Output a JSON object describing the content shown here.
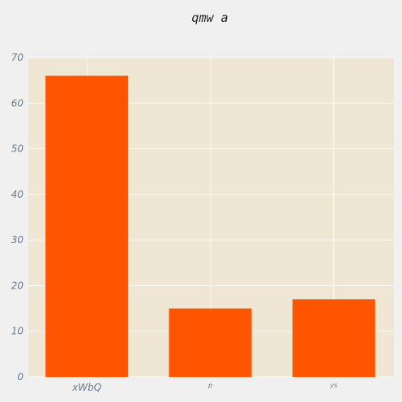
{
  "chart_data": {
    "type": "bar",
    "title": "qmw a",
    "categories": [
      "xWbQ",
      "p",
      "ys"
    ],
    "values": [
      66,
      15,
      17
    ],
    "xlabel": "",
    "ylabel": "",
    "ylim": [
      0,
      70
    ],
    "yticks": [
      "0",
      "10",
      "20",
      "30",
      "40",
      "50",
      "60",
      "70"
    ],
    "grid": true,
    "colors": {
      "bar": "#ff5500",
      "plot_background": "#efe7d4",
      "figure_background": "#f0f0f0",
      "grid": "#ffffff"
    }
  }
}
